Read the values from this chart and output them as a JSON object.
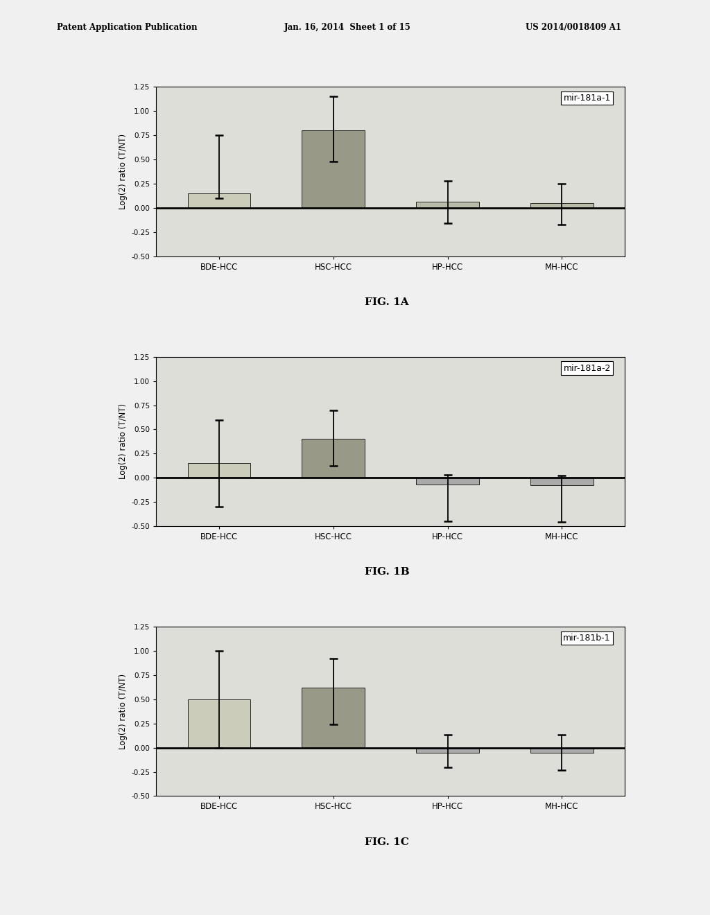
{
  "charts": [
    {
      "label": "mir-181a-1",
      "fig_label": "FIG. 1A",
      "categories": [
        "BDE-HCC",
        "HSC-HCC",
        "HP-HCC",
        "MH-HCC"
      ],
      "bar_values": [
        0.15,
        0.8,
        0.06,
        0.05
      ],
      "err_upper": [
        0.6,
        0.35,
        0.22,
        0.2
      ],
      "err_lower": [
        0.05,
        0.32,
        0.22,
        0.22
      ],
      "bar_colors": [
        "#ccccbb",
        "#999988",
        "#bbbbaa",
        "#bbbbaa"
      ]
    },
    {
      "label": "mir-181a-2",
      "fig_label": "FIG. 1B",
      "categories": [
        "BDE-HCC",
        "HSC-HCC",
        "HP-HCC",
        "MH-HCC"
      ],
      "bar_values": [
        0.15,
        0.4,
        -0.07,
        -0.08
      ],
      "err_upper": [
        0.45,
        0.3,
        0.1,
        0.1
      ],
      "err_lower": [
        0.45,
        0.28,
        0.38,
        0.38
      ],
      "bar_colors": [
        "#ccccbb",
        "#999988",
        "#aaaaaa",
        "#aaaaaa"
      ]
    },
    {
      "label": "mir-181b-1",
      "fig_label": "FIG. 1C",
      "categories": [
        "BDE-HCC",
        "HSC-HCC",
        "HP-HCC",
        "MH-HCC"
      ],
      "bar_values": [
        0.5,
        0.62,
        -0.05,
        -0.05
      ],
      "err_upper": [
        0.5,
        0.3,
        0.18,
        0.18
      ],
      "err_lower": [
        0.5,
        0.38,
        0.15,
        0.18
      ],
      "bar_colors": [
        "#ccccbb",
        "#999988",
        "#aaaaaa",
        "#aaaaaa"
      ]
    }
  ],
  "ylabel": "Log(2) ratio (T/NT)",
  "background_color": "#f0f0f0",
  "header_line1": "Patent Application Publication",
  "header_line2": "Jan. 16, 2014  Sheet 1 of 15",
  "header_line3": "US 2014/0018409 A1",
  "bar_width": 0.55,
  "axes_bg": "#deded8",
  "ylim": [
    -0.5,
    1.25
  ],
  "yticks": [
    -0.5,
    -0.25,
    0.0,
    0.25,
    0.5,
    0.75,
    1.0,
    1.25
  ],
  "yticklabels": [
    "-0.50",
    "-0.25",
    "0.00",
    "0.25",
    "0.50",
    "0.75",
    "1.00",
    "1.25"
  ]
}
